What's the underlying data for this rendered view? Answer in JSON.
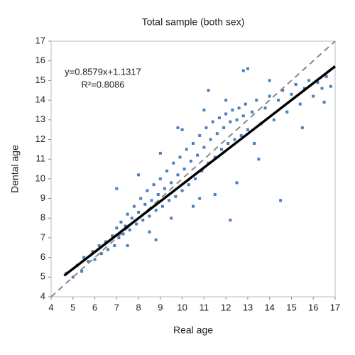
{
  "chart_data": {
    "type": "scatter",
    "title": "Total sample (both sex)",
    "x_label": "Real age",
    "y_label": "Dental age",
    "annotations": [
      "y=0.8579x+1.1317",
      "R²=0.8086"
    ],
    "xlim": [
      4,
      17
    ],
    "ylim": [
      4,
      17
    ],
    "xticks": [
      4,
      5,
      6,
      7,
      8,
      9,
      10,
      11,
      12,
      13,
      14,
      15,
      16,
      17
    ],
    "yticks": [
      4,
      5,
      6,
      7,
      8,
      9,
      10,
      11,
      12,
      13,
      14,
      15,
      16,
      17
    ],
    "series": [
      {
        "color": "#4a7fc1",
        "x": [
          4.7,
          5.0,
          5.2,
          5.4,
          5.5,
          5.7,
          5.9,
          6.0,
          6.2,
          6.3,
          6.5,
          6.6,
          6.8,
          6.9,
          7.0,
          7.1,
          7.2,
          7.3,
          7.4,
          7.5,
          7.6,
          7.7,
          7.8,
          7.9,
          8.0,
          8.1,
          8.2,
          8.3,
          8.4,
          8.5,
          8.6,
          8.7,
          8.8,
          8.9,
          9.0,
          9.1,
          9.2,
          9.3,
          9.4,
          9.5,
          9.6,
          9.7,
          9.8,
          9.9,
          10.0,
          10.1,
          10.2,
          10.3,
          10.4,
          10.5,
          10.6,
          10.7,
          10.8,
          10.9,
          11.0,
          11.1,
          11.2,
          11.3,
          11.4,
          11.5,
          11.6,
          11.7,
          11.8,
          11.9,
          12.0,
          12.1,
          12.2,
          12.3,
          12.4,
          12.5,
          12.6,
          12.7,
          12.8,
          12.9,
          13.0,
          13.2,
          13.4,
          13.6,
          13.8,
          14.0,
          14.2,
          14.4,
          14.6,
          14.8,
          15.0,
          15.2,
          15.4,
          15.6,
          15.8,
          16.0,
          16.2,
          16.4,
          16.6,
          16.8,
          7.0,
          7.5,
          8.0,
          8.5,
          9.0,
          9.5,
          10.0,
          10.5,
          11.0,
          11.5,
          12.0,
          12.5,
          13.0,
          13.5,
          14.0,
          11.2,
          12.2,
          13.3,
          14.5,
          15.5,
          16.5,
          12.8,
          9.8,
          8.8,
          10.8
        ],
        "values": [
          5.2,
          5.0,
          5.6,
          5.3,
          6.0,
          5.8,
          6.3,
          5.9,
          6.6,
          6.2,
          6.8,
          6.4,
          7.1,
          6.6,
          7.5,
          7.0,
          7.8,
          7.2,
          7.6,
          8.2,
          7.4,
          8.0,
          8.6,
          7.7,
          8.3,
          9.0,
          7.9,
          8.7,
          9.4,
          8.1,
          8.9,
          9.7,
          8.4,
          9.2,
          10.0,
          8.6,
          9.5,
          10.4,
          8.9,
          9.8,
          10.8,
          9.1,
          10.2,
          11.1,
          9.4,
          10.5,
          11.5,
          9.7,
          10.9,
          11.8,
          10.0,
          11.2,
          12.2,
          10.4,
          11.6,
          12.6,
          10.8,
          12.0,
          12.9,
          11.1,
          12.3,
          13.1,
          11.5,
          12.6,
          13.3,
          11.8,
          12.9,
          13.5,
          12.0,
          13.0,
          13.6,
          12.2,
          13.2,
          13.8,
          12.5,
          13.4,
          14.0,
          12.8,
          13.6,
          14.2,
          13.0,
          14.0,
          14.5,
          13.4,
          14.3,
          14.8,
          13.8,
          14.6,
          15.0,
          14.2,
          14.9,
          14.6,
          15.2,
          14.7,
          9.5,
          6.6,
          10.2,
          7.3,
          11.3,
          8.0,
          12.5,
          8.6,
          13.5,
          9.2,
          14.0,
          9.8,
          15.6,
          11.0,
          15.0,
          14.5,
          7.9,
          11.8,
          8.9,
          12.6,
          13.9,
          15.5,
          12.6,
          6.9,
          9.0
        ]
      }
    ],
    "trend_line": {
      "color": "#000000",
      "x": [
        4.6,
        17
      ],
      "y": [
        5.08,
        15.72
      ]
    },
    "reference_line": {
      "color": "#888888",
      "x": [
        4,
        17
      ],
      "y": [
        4,
        17
      ]
    }
  }
}
